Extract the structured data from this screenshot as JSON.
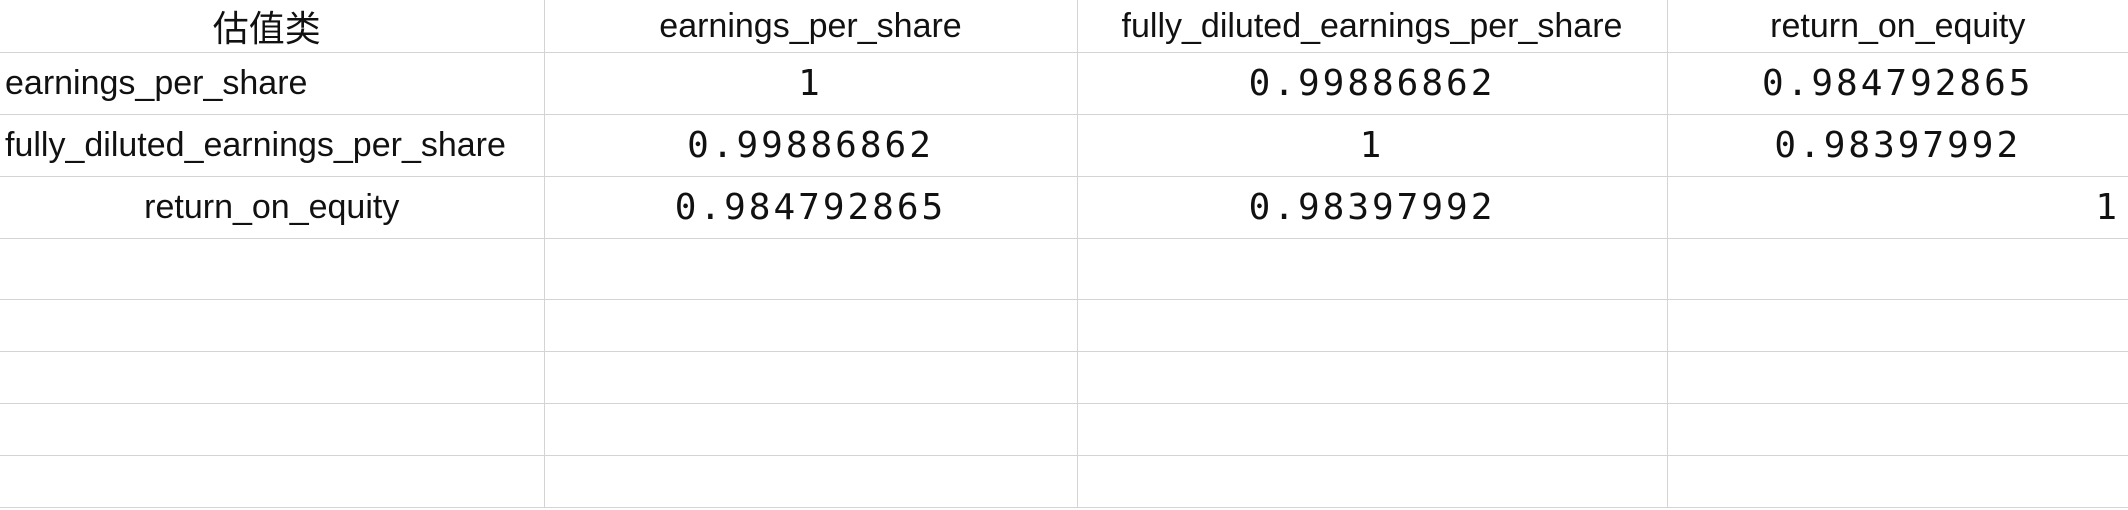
{
  "sheet": {
    "header": {
      "corner": "估值类",
      "columns": [
        "earnings_per_share",
        "fully_diluted_earnings_per_share",
        "return_on_equity"
      ]
    },
    "rows": [
      {
        "label": "earnings_per_share",
        "values": [
          "1",
          "0.99886862",
          "0.984792865"
        ]
      },
      {
        "label": "fully_diluted_earnings_per_share",
        "values": [
          "0.99886862",
          "1",
          "0.98397992"
        ]
      },
      {
        "label": "return_on_equity",
        "values": [
          "0.984792865",
          "0.98397992",
          "1"
        ]
      }
    ]
  }
}
